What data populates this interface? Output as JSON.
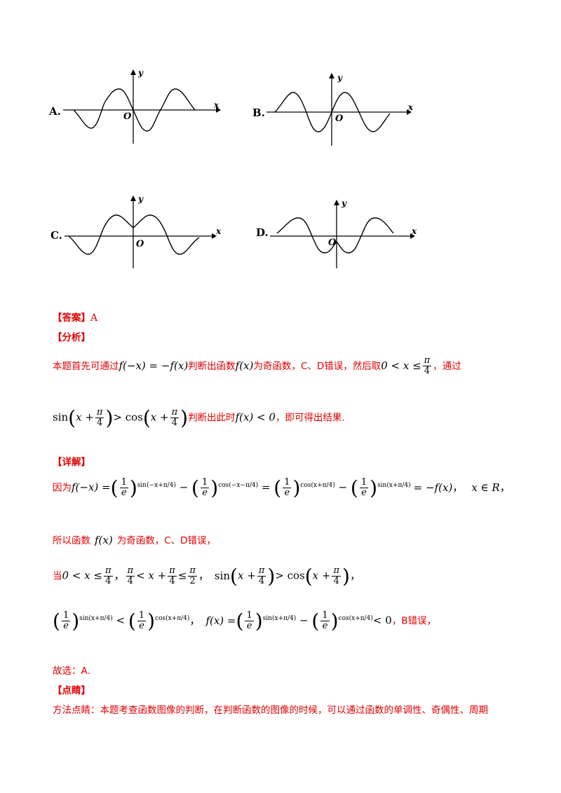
{
  "options": [
    {
      "letter": "A.",
      "x_label": "x",
      "y_label": "y",
      "origin_label": "O"
    },
    {
      "letter": "B.",
      "x_label": "x",
      "y_label": "y",
      "origin_label": "O"
    },
    {
      "letter": "C.",
      "x_label": "x",
      "y_label": "y",
      "origin_label": "O"
    },
    {
      "letter": "D.",
      "x_label": "x",
      "y_label": "y",
      "origin_label": "O"
    }
  ],
  "answer": {
    "header": "【答案】",
    "value": "A"
  },
  "analysis": {
    "header": "【分析】",
    "line1_a": "本题首先可通过",
    "line1_m1": "f(−x) = −f(x)",
    "line1_b": "判断出函数",
    "line1_m2": "f(x)",
    "line1_c": "为奇函数，C、D错误，然后取",
    "line1_m3a": "0 < x ≤",
    "line1_c2": "，通过",
    "line2_sin": "sin",
    "line2_x": "x +",
    "line2_gt": "> cos",
    "line2_a": "判断出此时",
    "line2_m": "f(x) < 0",
    "line2_b": "，即可得出结果."
  },
  "detail": {
    "header": "【详解】",
    "because": "因为",
    "eq_f": "f(−x) =",
    "one": "1",
    "e": "e",
    "exp_sin_neg": "sin(−x+π/4)",
    "exp_cos_neg": "cos(−x−π/4)",
    "exp_cos_pos": "cos(x+π/4)",
    "exp_sin_pos": "sin(x+π/4)",
    "eq_end": "= −f(x)",
    "domain": "x ∈ R",
    "odd_a": "所以函数",
    "odd_m": "f(x)",
    "odd_b": "为奇函数，C、D错误，",
    "when": "当",
    "cond1": "0 < x ≤",
    "cond2": "< x +",
    "cond2b": "≤",
    "cond3_sin": "sin",
    "cond3_gt": "> cos",
    "pi": "π",
    "four": "4",
    "two": "2",
    "final_b": "，B错误，",
    "final_fx": "f(x) =",
    "final_lt0": "< 0",
    "choose": "故选：A."
  },
  "comment": {
    "header": "【点睛】",
    "text": "方法点睛：本题考查函数图像的判断，在判断函数的图像的时候，可以通过函数的单调性、奇偶性、周期"
  }
}
